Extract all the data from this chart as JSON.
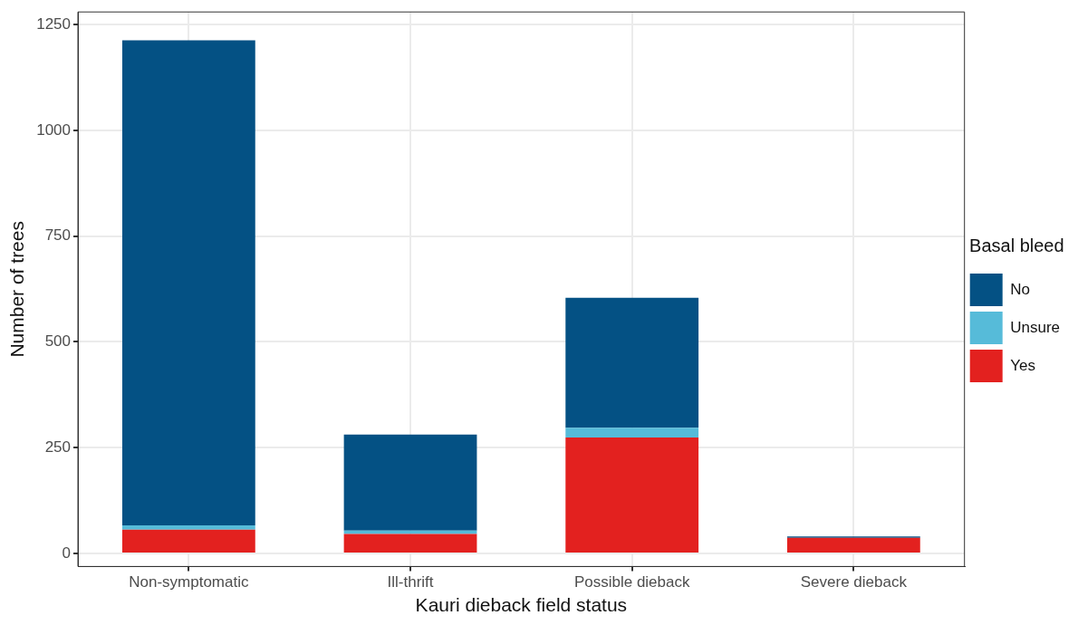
{
  "chart_data": {
    "type": "bar",
    "stacked": true,
    "xlabel": "Kauri dieback field status",
    "ylabel": "Number of trees",
    "legend_title": "Basal bleed",
    "categories": [
      "Non-symptomatic",
      "Ill-thrift",
      "Possible dieback",
      "Severe dieback"
    ],
    "series": [
      {
        "name": "Yes",
        "color": "#e3211f",
        "values": [
          56,
          46,
          274,
          37
        ]
      },
      {
        "name": "Unsure",
        "color": "#56bbd9",
        "values": [
          10,
          8,
          23,
          0
        ]
      },
      {
        "name": "No",
        "color": "#045184",
        "values": [
          1147,
          227,
          307,
          3
        ]
      }
    ],
    "ylim": [
      -31,
      1280
    ],
    "yticks": [
      0,
      250,
      500,
      750,
      1000,
      1250
    ],
    "grid": true,
    "legend": "right"
  }
}
